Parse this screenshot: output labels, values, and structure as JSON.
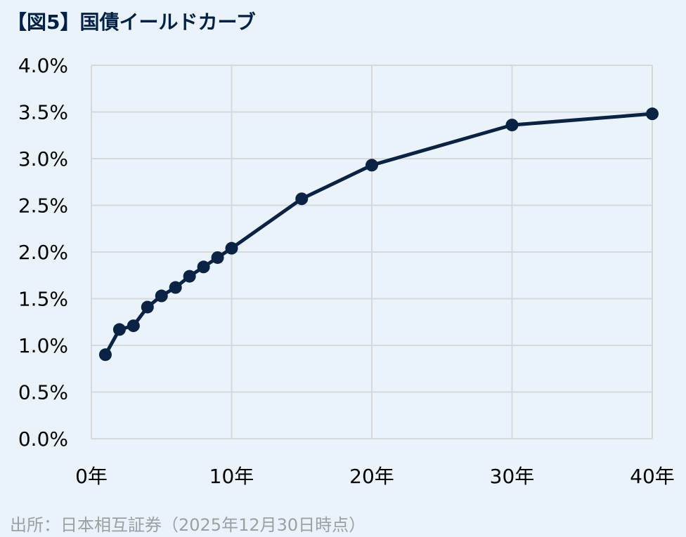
{
  "chart_data": {
    "type": "line",
    "title": "【図5】国債イールドカーブ",
    "source": "出所：日本相互証券（2025年12月30日時点）",
    "xlabel": "",
    "ylabel": "",
    "xlim": [
      0,
      40
    ],
    "ylim": [
      0,
      4.0
    ],
    "grid": true,
    "x_ticks": [
      0,
      10,
      20,
      30,
      40
    ],
    "x_tick_labels": [
      "0年",
      "10年",
      "20年",
      "30年",
      "40年"
    ],
    "y_ticks": [
      0,
      0.5,
      1.0,
      1.5,
      2.0,
      2.5,
      3.0,
      3.5,
      4.0
    ],
    "y_tick_labels": [
      "0.0%",
      "0.5%",
      "1.0%",
      "1.5%",
      "2.0%",
      "2.5%",
      "3.0%",
      "3.5%",
      "4.0%"
    ],
    "series": [
      {
        "x": [
          1,
          2,
          3,
          4,
          5,
          6,
          7,
          8,
          9,
          10,
          15,
          20,
          30,
          40
        ],
        "y": [
          0.9,
          1.17,
          1.21,
          1.41,
          1.53,
          1.62,
          1.74,
          1.84,
          1.94,
          2.04,
          2.57,
          2.93,
          3.36,
          3.48
        ],
        "color": "#0a2244"
      }
    ]
  }
}
